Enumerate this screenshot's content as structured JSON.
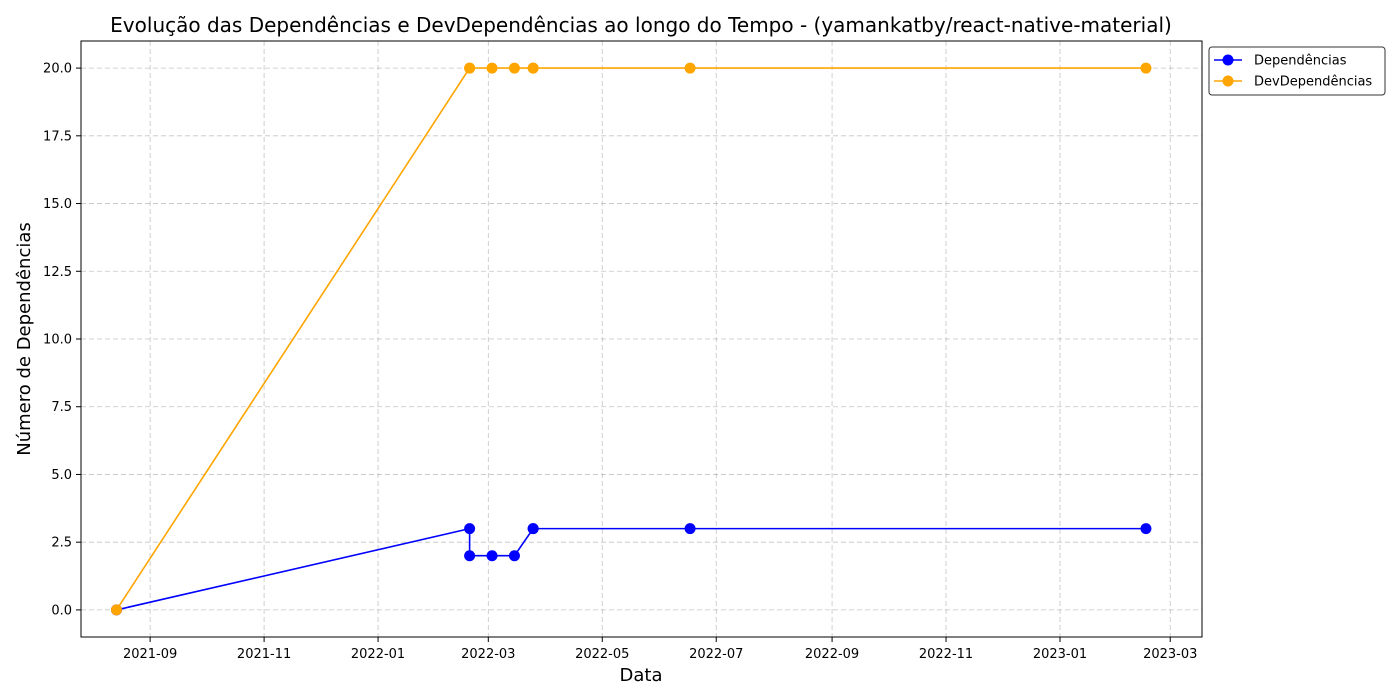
{
  "chart_data": {
    "type": "line",
    "title": "Evolução das Dependências e DevDependências ao longo do Tempo - (yamankatby/react-native-material)",
    "xlabel": "Data",
    "ylabel": "Número de Dependências",
    "x_ticks": [
      "2021-09",
      "2021-11",
      "2022-01",
      "2022-03",
      "2022-05",
      "2022-07",
      "2022-09",
      "2022-11",
      "2023-01",
      "2023-03"
    ],
    "y_ticks": [
      "0.0",
      "2.5",
      "5.0",
      "7.5",
      "10.0",
      "12.5",
      "15.0",
      "17.5",
      "20.0"
    ],
    "xlim": [
      "2021-07-26",
      "2023-03-18"
    ],
    "ylim": [
      -1,
      21
    ],
    "grid": true,
    "legend_position": "outside top-right",
    "series": [
      {
        "name": "Dependências",
        "color": "#0000ff",
        "x": [
          "2021-08-14",
          "2022-02-19",
          "2022-02-19",
          "2022-03-03",
          "2022-03-15",
          "2022-03-25",
          "2022-03-25",
          "2022-06-17",
          "2023-02-16"
        ],
        "y": [
          0,
          3,
          2,
          2,
          2,
          3,
          3,
          3,
          3
        ]
      },
      {
        "name": "DevDependências",
        "color": "#ffa500",
        "x": [
          "2021-08-14",
          "2022-02-19",
          "2022-02-19",
          "2022-03-03",
          "2022-03-15",
          "2022-03-25",
          "2022-03-25",
          "2022-06-17",
          "2023-02-16"
        ],
        "y": [
          0,
          20,
          20,
          20,
          20,
          20,
          20,
          20,
          20
        ]
      }
    ]
  }
}
